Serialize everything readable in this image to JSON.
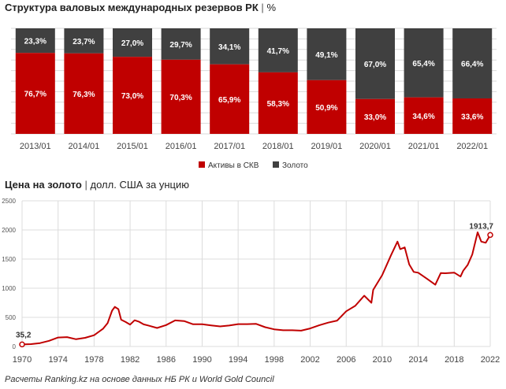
{
  "titles": {
    "top_bold": "Структура валовых международных резервов РК",
    "top_sep": "|",
    "top_unit": "%",
    "bottom_bold": "Цена на золото",
    "bottom_sep": "|",
    "bottom_unit": "долл. США за унцию"
  },
  "source": "Расчеты Ranking.kz на основе данных НБ РК и World Gold Council",
  "colors": {
    "red": "#c00000",
    "dark": "#404040",
    "line": "#c00000"
  },
  "chart_data": [
    {
      "type": "bar",
      "stacked": true,
      "categories": [
        "2013/01",
        "2014/01",
        "2015/01",
        "2016/01",
        "2017/01",
        "2018/01",
        "2019/01",
        "2020/01",
        "2021/01",
        "2022/01"
      ],
      "series": [
        {
          "name": "Активы в СКВ",
          "color": "#c00000",
          "values": [
            76.7,
            76.3,
            73.0,
            70.3,
            65.9,
            58.3,
            50.9,
            33.0,
            34.6,
            33.6
          ],
          "labels": [
            "76,7%",
            "76,3%",
            "73,0%",
            "70,3%",
            "65,9%",
            "58,3%",
            "50,9%",
            "33,0%",
            "34,6%",
            "33,6%"
          ]
        },
        {
          "name": "Золото",
          "color": "#404040",
          "values": [
            23.3,
            23.7,
            27.0,
            29.7,
            34.1,
            41.7,
            49.1,
            67.0,
            65.4,
            66.4
          ],
          "labels": [
            "23,3%",
            "23,7%",
            "27,0%",
            "29,7%",
            "34,1%",
            "41,7%",
            "49,1%",
            "67,0%",
            "65,4%",
            "66,4%"
          ]
        }
      ],
      "ylim": [
        0,
        100
      ],
      "legend_position": "bottom",
      "grid": true
    },
    {
      "type": "line",
      "xlim": [
        1970,
        2022
      ],
      "ylim": [
        0,
        2500
      ],
      "xticks": [
        "1970",
        "1974",
        "1978",
        "1982",
        "1986",
        "1990",
        "1994",
        "1998",
        "2002",
        "2006",
        "2010",
        "2014",
        "2018",
        "2022"
      ],
      "yticks": [
        "0",
        "500",
        "1000",
        "1500",
        "2000",
        "2500"
      ],
      "grid": true,
      "start_label": "35,2",
      "end_label": "1913,7",
      "x": [
        1970,
        1971,
        1972,
        1973,
        1974,
        1975,
        1976,
        1977,
        1978,
        1979,
        1979.5,
        1980,
        1980.3,
        1980.7,
        1981,
        1981.5,
        1982,
        1982.5,
        1983,
        1983.5,
        1984,
        1985,
        1986,
        1987,
        1988,
        1989,
        1990,
        1991,
        1992,
        1993,
        1994,
        1995,
        1996,
        1997,
        1998,
        1999,
        2000,
        2001,
        2002,
        2003,
        2004,
        2005,
        2006,
        2007,
        2008,
        2008.8,
        2009,
        2010,
        2011,
        2011.7,
        2012,
        2012.5,
        2013,
        2013.5,
        2014,
        2015,
        2015.9,
        2016.5,
        2017,
        2018,
        2018.7,
        2019,
        2019.5,
        2020,
        2020.6,
        2021,
        2021.5,
        2022
      ],
      "y": [
        35.2,
        41,
        58,
        97,
        154,
        161,
        125,
        148,
        193,
        306,
        400,
        615,
        680,
        640,
        460,
        420,
        376,
        450,
        424,
        380,
        361,
        317,
        368,
        447,
        437,
        381,
        383,
        362,
        344,
        360,
        384,
        384,
        388,
        331,
        294,
        279,
        279,
        271,
        310,
        363,
        410,
        445,
        604,
        697,
        872,
        750,
        972,
        1225,
        1572,
        1800,
        1670,
        1700,
        1410,
        1280,
        1266,
        1160,
        1060,
        1260,
        1257,
        1268,
        1200,
        1300,
        1400,
        1580,
        1960,
        1800,
        1780,
        1913.7
      ]
    }
  ]
}
